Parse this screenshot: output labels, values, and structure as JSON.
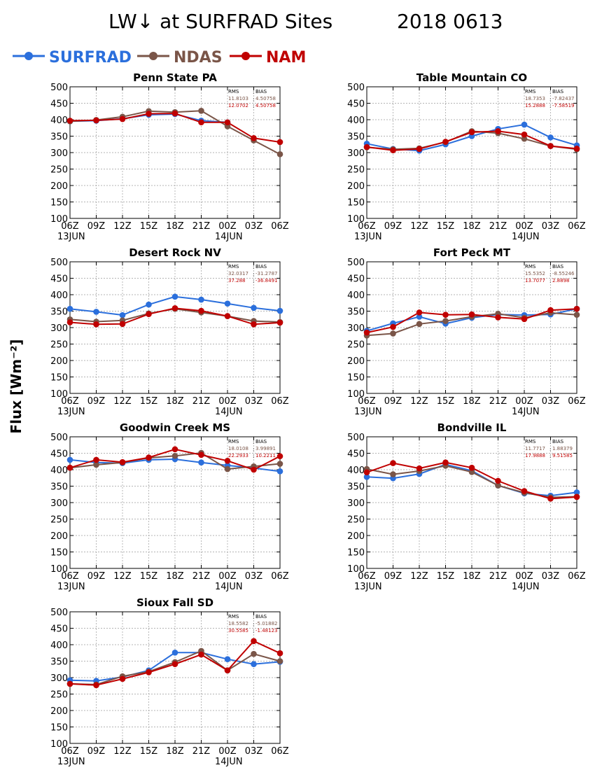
{
  "title": "LW↓ at SURFRAD Sites",
  "date": "2018 0613",
  "ylabel": "Flux [Wm⁻²]",
  "stats_headers": {
    "rms": "RMS",
    "bias": "BIAS"
  },
  "legend": [
    {
      "name": "SURFRAD",
      "color": "#2b6fdc"
    },
    {
      "name": "NDAS",
      "color": "#7a5548"
    },
    {
      "name": "NAM",
      "color": "#c00000"
    }
  ],
  "chart_data": [
    {
      "type": "line",
      "title": "Penn State PA",
      "x": [
        "06Z",
        "09Z",
        "12Z",
        "15Z",
        "18Z",
        "21Z",
        "00Z",
        "03Z",
        "06Z"
      ],
      "date_labels": [
        "13JUN",
        "14JUN"
      ],
      "ylim": [
        100,
        500
      ],
      "yticks": [
        100,
        150,
        200,
        250,
        300,
        350,
        400,
        450,
        500
      ],
      "grid": true,
      "series": [
        {
          "name": "SURFRAD",
          "values": [
            395,
            397,
            403,
            415,
            417,
            397,
            392,
            null,
            null
          ]
        },
        {
          "name": "NDAS",
          "values": [
            395,
            399,
            409,
            426,
            423,
            427,
            380,
            337,
            295
          ]
        },
        {
          "name": "NAM",
          "values": [
            397,
            398,
            402,
            418,
            419,
            392,
            392,
            344,
            332
          ]
        }
      ],
      "stats": [
        {
          "rms": "11.8103",
          "bias": "4.50758",
          "color": "#7a5548"
        },
        {
          "rms": "12.0702",
          "bias": "4.50758",
          "color": "#c00000"
        }
      ]
    },
    {
      "type": "line",
      "title": "Table Mountain CO",
      "x": [
        "06Z",
        "09Z",
        "12Z",
        "15Z",
        "18Z",
        "21Z",
        "00Z",
        "03Z",
        "06Z"
      ],
      "date_labels": [
        "13JUN",
        "14JUN"
      ],
      "ylim": [
        100,
        500
      ],
      "yticks": [
        100,
        150,
        200,
        250,
        300,
        350,
        400,
        450,
        500
      ],
      "grid": true,
      "series": [
        {
          "name": "SURFRAD",
          "values": [
            327,
            311,
            306,
            325,
            350,
            372,
            385,
            346,
            322
          ]
        },
        {
          "name": "NDAS",
          "values": [
            316,
            310,
            313,
            332,
            365,
            359,
            342,
            320,
            310
          ]
        },
        {
          "name": "NAM",
          "values": [
            317,
            307,
            311,
            333,
            362,
            365,
            355,
            320,
            312
          ]
        }
      ],
      "stats": [
        {
          "rms": "18.7353",
          "bias": "-7.82437",
          "color": "#7a5548"
        },
        {
          "rms": "15.2888",
          "bias": "-7.58519",
          "color": "#c00000"
        }
      ]
    },
    {
      "type": "line",
      "title": "Desert Rock NV",
      "x": [
        "06Z",
        "09Z",
        "12Z",
        "15Z",
        "18Z",
        "21Z",
        "00Z",
        "03Z",
        "06Z"
      ],
      "date_labels": [
        "13JUN",
        "14JUN"
      ],
      "ylim": [
        100,
        500
      ],
      "yticks": [
        100,
        150,
        200,
        250,
        300,
        350,
        400,
        450,
        500
      ],
      "grid": true,
      "series": [
        {
          "name": "SURFRAD",
          "values": [
            357,
            348,
            338,
            370,
            394,
            385,
            373,
            360,
            351
          ]
        },
        {
          "name": "NDAS",
          "values": [
            325,
            318,
            322,
            343,
            357,
            346,
            335,
            320,
            317
          ]
        },
        {
          "name": "NAM",
          "values": [
            316,
            310,
            311,
            341,
            359,
            351,
            335,
            310,
            315
          ]
        }
      ],
      "stats": [
        {
          "rms": "32.0317",
          "bias": "-31.2787",
          "color": "#7a5548"
        },
        {
          "rms": "37.288",
          "bias": "-36.8491",
          "color": "#c00000"
        }
      ]
    },
    {
      "type": "line",
      "title": "Fort Peck MT",
      "x": [
        "06Z",
        "09Z",
        "12Z",
        "15Z",
        "18Z",
        "21Z",
        "00Z",
        "03Z",
        "06Z"
      ],
      "date_labels": [
        "13JUN",
        "14JUN"
      ],
      "ylim": [
        100,
        500
      ],
      "yticks": [
        100,
        150,
        200,
        250,
        300,
        350,
        400,
        450,
        500
      ],
      "grid": true,
      "series": [
        {
          "name": "SURFRAD",
          "values": [
            290,
            313,
            333,
            312,
            330,
            340,
            338,
            340,
            357
          ]
        },
        {
          "name": "NDAS",
          "values": [
            276,
            282,
            311,
            320,
            333,
            342,
            330,
            345,
            339
          ]
        },
        {
          "name": "NAM",
          "values": [
            285,
            302,
            346,
            339,
            340,
            331,
            326,
            353,
            357
          ]
        }
      ],
      "stats": [
        {
          "rms": "15.5352",
          "bias": "-8.55246",
          "color": "#7a5548"
        },
        {
          "rms": "13.7077",
          "bias": "2.8898",
          "color": "#c00000"
        }
      ]
    },
    {
      "type": "line",
      "title": "Goodwin Creek MS",
      "x": [
        "06Z",
        "09Z",
        "12Z",
        "15Z",
        "18Z",
        "21Z",
        "00Z",
        "03Z",
        "06Z"
      ],
      "date_labels": [
        "13JUN",
        "14JUN"
      ],
      "ylim": [
        100,
        500
      ],
      "yticks": [
        100,
        150,
        200,
        250,
        300,
        350,
        400,
        450,
        500
      ],
      "grid": true,
      "series": [
        {
          "name": "SURFRAD",
          "values": [
            430,
            422,
            420,
            430,
            432,
            422,
            413,
            405,
            395
          ]
        },
        {
          "name": "NDAS",
          "values": [
            406,
            415,
            422,
            436,
            442,
            451,
            402,
            410,
            418
          ]
        },
        {
          "name": "NAM",
          "values": [
            406,
            430,
            423,
            437,
            462,
            445,
            427,
            400,
            441
          ]
        }
      ],
      "stats": [
        {
          "rms": "18.0108",
          "bias": "3.99891",
          "color": "#7a5548"
        },
        {
          "rms": "22.2933",
          "bias": "10.2211",
          "color": "#c00000"
        }
      ]
    },
    {
      "type": "line",
      "title": "Bondville IL",
      "x": [
        "06Z",
        "09Z",
        "12Z",
        "15Z",
        "18Z",
        "21Z",
        "00Z",
        "03Z",
        "06Z"
      ],
      "date_labels": [
        "13JUN",
        "14JUN"
      ],
      "ylim": [
        100,
        500
      ],
      "yticks": [
        100,
        150,
        200,
        250,
        300,
        350,
        400,
        450,
        500
      ],
      "grid": true,
      "series": [
        {
          "name": "SURFRAD",
          "values": [
            378,
            374,
            387,
            416,
            397,
            352,
            328,
            321,
            331
          ]
        },
        {
          "name": "NDAS",
          "values": [
            402,
            386,
            396,
            412,
            393,
            352,
            330,
            316,
            318
          ]
        },
        {
          "name": "NAM",
          "values": [
            392,
            420,
            404,
            422,
            406,
            366,
            335,
            312,
            317
          ]
        }
      ],
      "stats": [
        {
          "rms": "11.7717",
          "bias": "1.88379",
          "color": "#7a5548"
        },
        {
          "rms": "17.9888",
          "bias": "9.51585",
          "color": "#c00000"
        }
      ]
    },
    {
      "type": "line",
      "title": "Sioux Fall SD",
      "x": [
        "06Z",
        "09Z",
        "12Z",
        "15Z",
        "18Z",
        "21Z",
        "00Z",
        "03Z",
        "06Z"
      ],
      "date_labels": [
        "13JUN",
        "14JUN"
      ],
      "ylim": [
        100,
        500
      ],
      "yticks": [
        100,
        150,
        200,
        250,
        300,
        350,
        400,
        450,
        500
      ],
      "grid": true,
      "series": [
        {
          "name": "SURFRAD",
          "values": [
            292,
            290,
            302,
            322,
            376,
            376,
            356,
            341,
            348
          ]
        },
        {
          "name": "NDAS",
          "values": [
            281,
            279,
            304,
            318,
            347,
            381,
            322,
            372,
            350
          ]
        },
        {
          "name": "NAM",
          "values": [
            281,
            277,
            296,
            316,
            341,
            370,
            322,
            411,
            374
          ]
        }
      ],
      "stats": [
        {
          "rms": "18.5582",
          "bias": "-5.01882",
          "color": "#7a5548"
        },
        {
          "rms": "30.5585",
          "bias": "-1.48123",
          "color": "#c00000"
        }
      ]
    }
  ]
}
